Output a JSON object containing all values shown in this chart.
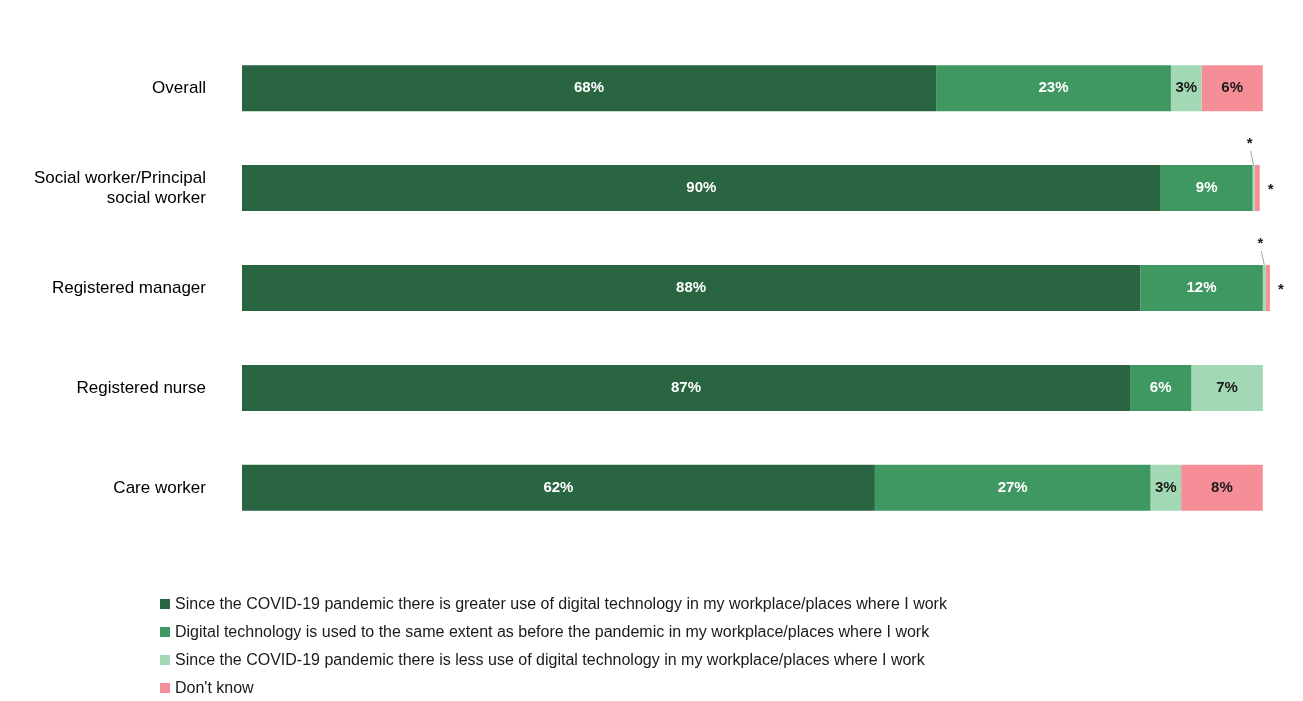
{
  "chart_data": {
    "type": "bar",
    "orientation": "horizontal",
    "stacked": true,
    "legend": "bottom",
    "tick_labels": "y",
    "xlim": [
      0,
      101
    ],
    "categories": [
      "Overall",
      "Social worker/Principal social worker",
      "Registered manager",
      "Registered nurse",
      "Care worker"
    ],
    "series": [
      {
        "name": "Since the COVID-19 pandemic there is greater use of digital technology in my workplace/places where I work",
        "color": "#2a6541",
        "values": [
          68,
          90,
          88,
          87,
          62
        ],
        "value_labels": [
          "68%",
          "90%",
          "88%",
          "87%",
          "62%"
        ]
      },
      {
        "name": "Digital technology is used to the same extent as before the pandemic in my workplace/places where I work",
        "color": "#3f9862",
        "values": [
          23,
          9,
          12,
          6,
          27
        ],
        "value_labels": [
          "23%",
          "9%",
          "12%",
          "6%",
          "27%"
        ]
      },
      {
        "name": "Since the COVID-19 pandemic there is less use of digital technology in my workplace/places where I work",
        "color": "#a2d8b4",
        "values": [
          3,
          0.2,
          0.3,
          7,
          3
        ],
        "value_labels": [
          "3%",
          "*",
          "*",
          "7%",
          "3%"
        ]
      },
      {
        "name": "Don't know",
        "color": "#f68e97",
        "values": [
          6,
          0.5,
          0.4,
          null,
          8
        ],
        "value_labels": [
          "6%",
          "*",
          "*",
          null,
          "8%"
        ]
      }
    ]
  }
}
